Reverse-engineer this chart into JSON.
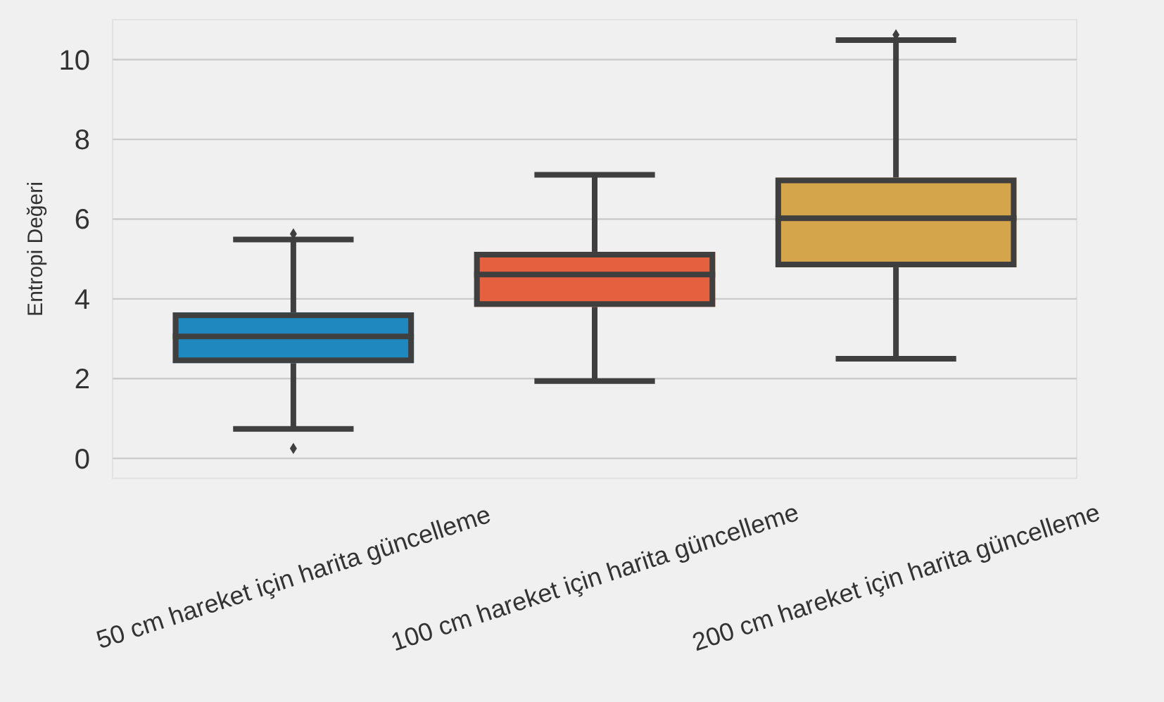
{
  "chart_data": {
    "type": "box",
    "ylabel": "Entropi Değeri",
    "categories": [
      "50 cm hareket için harita güncelleme",
      "100 cm hareket için harita güncelleme",
      "200 cm hareket için harita güncelleme"
    ],
    "colors": [
      "#1f88bf",
      "#e5603f",
      "#d4a54a"
    ],
    "boxes": [
      {
        "low": 0.74,
        "q1": 2.39,
        "median": 3.06,
        "q3": 3.66,
        "high": 5.49,
        "outliers": [
          0.25,
          5.63
        ]
      },
      {
        "low": 1.94,
        "q1": 3.8,
        "median": 4.61,
        "q3": 5.18,
        "high": 7.11
      },
      {
        "low": 2.5,
        "q1": 4.79,
        "median": 6.02,
        "q3": 7.04,
        "high": 10.49,
        "outliers": [
          10.62
        ]
      }
    ],
    "ylim": [
      -0.5,
      11
    ],
    "yticks": [
      0,
      2,
      4,
      6,
      8,
      10
    ],
    "grid": "y"
  }
}
